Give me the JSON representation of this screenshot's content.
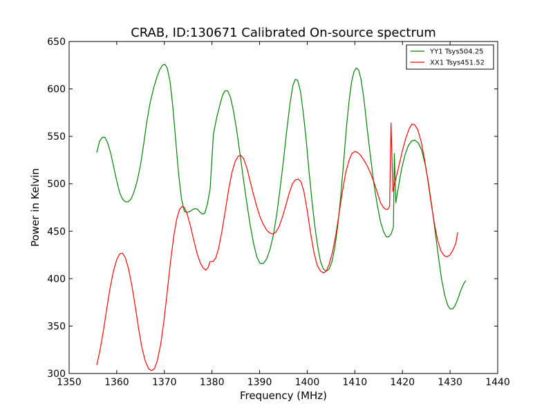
{
  "chart_data": {
    "type": "line",
    "title": "CRAB, ID:130671 Calibrated On-source spectrum",
    "xlabel": "Frequency (MHz)",
    "ylabel": "Power in Kelvin",
    "xlim": [
      1350,
      1440
    ],
    "ylim": [
      300,
      650
    ],
    "xticks": [
      1350,
      1360,
      1370,
      1380,
      1390,
      1400,
      1410,
      1420,
      1430,
      1440
    ],
    "yticks": [
      300,
      350,
      400,
      450,
      500,
      550,
      600,
      650
    ],
    "grid": false,
    "legend_position": "top-right",
    "series": [
      {
        "name": "YY1 Tsys504.25",
        "color": "#008000",
        "points": [
          [
            1355.8,
            533
          ],
          [
            1356.4,
            545
          ],
          [
            1357.0,
            549
          ],
          [
            1357.5,
            549
          ],
          [
            1358.1,
            543
          ],
          [
            1358.7,
            533
          ],
          [
            1359.3,
            519
          ],
          [
            1360.0,
            503
          ],
          [
            1360.6,
            491
          ],
          [
            1361.2,
            484
          ],
          [
            1361.8,
            481
          ],
          [
            1362.4,
            481
          ],
          [
            1363.0,
            484
          ],
          [
            1363.6,
            491
          ],
          [
            1364.3,
            503
          ],
          [
            1365.0,
            520
          ],
          [
            1365.6,
            540
          ],
          [
            1366.3,
            565
          ],
          [
            1367.0,
            585
          ],
          [
            1367.7,
            600
          ],
          [
            1368.4,
            612
          ],
          [
            1369.0,
            620
          ],
          [
            1369.6,
            625
          ],
          [
            1370.1,
            626
          ],
          [
            1370.6,
            622
          ],
          [
            1371.2,
            608
          ],
          [
            1371.8,
            580
          ],
          [
            1372.4,
            545
          ],
          [
            1373.0,
            510
          ],
          [
            1373.6,
            484
          ],
          [
            1374.2,
            471
          ],
          [
            1374.8,
            470
          ],
          [
            1375.4,
            471
          ],
          [
            1376.0,
            473
          ],
          [
            1376.5,
            474
          ],
          [
            1377.0,
            473
          ],
          [
            1377.5,
            470
          ],
          [
            1378.0,
            468
          ],
          [
            1378.5,
            469
          ],
          [
            1379.0,
            478
          ],
          [
            1379.6,
            494
          ],
          [
            1380.3,
            552
          ],
          [
            1380.9,
            568
          ],
          [
            1381.6,
            582
          ],
          [
            1382.2,
            593
          ],
          [
            1382.7,
            598
          ],
          [
            1383.3,
            598
          ],
          [
            1383.9,
            591
          ],
          [
            1384.5,
            577
          ],
          [
            1385.2,
            556
          ],
          [
            1385.9,
            531
          ],
          [
            1386.6,
            505
          ],
          [
            1387.3,
            480
          ],
          [
            1388.0,
            457
          ],
          [
            1388.7,
            438
          ],
          [
            1389.4,
            423
          ],
          [
            1390.1,
            416
          ],
          [
            1390.8,
            416
          ],
          [
            1391.5,
            421
          ],
          [
            1392.2,
            431
          ],
          [
            1392.9,
            446
          ],
          [
            1393.6,
            468
          ],
          [
            1394.3,
            495
          ],
          [
            1395.0,
            524
          ],
          [
            1395.7,
            556
          ],
          [
            1396.4,
            585
          ],
          [
            1397.0,
            604
          ],
          [
            1397.5,
            610
          ],
          [
            1398.0,
            609
          ],
          [
            1398.6,
            597
          ],
          [
            1399.2,
            574
          ],
          [
            1399.8,
            545
          ],
          [
            1400.4,
            512
          ],
          [
            1401.0,
            482
          ],
          [
            1401.6,
            455
          ],
          [
            1402.2,
            434
          ],
          [
            1402.8,
            418
          ],
          [
            1403.4,
            410
          ],
          [
            1404.0,
            408
          ],
          [
            1404.6,
            410
          ],
          [
            1405.2,
            418
          ],
          [
            1405.8,
            433
          ],
          [
            1406.4,
            455
          ],
          [
            1407.0,
            485
          ],
          [
            1407.6,
            520
          ],
          [
            1408.2,
            557
          ],
          [
            1408.8,
            588
          ],
          [
            1409.3,
            607
          ],
          [
            1409.8,
            618
          ],
          [
            1410.3,
            622
          ],
          [
            1410.8,
            620
          ],
          [
            1411.3,
            610
          ],
          [
            1411.9,
            590
          ],
          [
            1412.6,
            558
          ],
          [
            1413.3,
            528
          ],
          [
            1414.0,
            500
          ],
          [
            1414.7,
            478
          ],
          [
            1415.4,
            460
          ],
          [
            1416.0,
            450
          ],
          [
            1416.6,
            444
          ],
          [
            1417.1,
            444
          ],
          [
            1417.6,
            447
          ],
          [
            1418.1,
            454
          ],
          [
            1418.3,
            532
          ],
          [
            1418.6,
            480
          ],
          [
            1419.1,
            495
          ],
          [
            1419.8,
            515
          ],
          [
            1420.5,
            530
          ],
          [
            1421.2,
            540
          ],
          [
            1421.9,
            545
          ],
          [
            1422.6,
            546
          ],
          [
            1423.3,
            543
          ],
          [
            1424.0,
            536
          ],
          [
            1424.7,
            522
          ],
          [
            1425.4,
            503
          ],
          [
            1426.1,
            479
          ],
          [
            1426.8,
            452
          ],
          [
            1427.5,
            425
          ],
          [
            1428.2,
            400
          ],
          [
            1428.9,
            382
          ],
          [
            1429.5,
            372
          ],
          [
            1430.0,
            368
          ],
          [
            1430.5,
            368
          ],
          [
            1431.0,
            371
          ],
          [
            1431.6,
            378
          ],
          [
            1432.2,
            387
          ],
          [
            1432.8,
            394
          ],
          [
            1433.3,
            398
          ]
        ]
      },
      {
        "name": "XX1 Tsys451.52",
        "color": "#ff0000",
        "points": [
          [
            1355.8,
            309
          ],
          [
            1356.5,
            325
          ],
          [
            1357.2,
            345
          ],
          [
            1357.9,
            368
          ],
          [
            1358.6,
            390
          ],
          [
            1359.3,
            408
          ],
          [
            1360.0,
            420
          ],
          [
            1360.6,
            426
          ],
          [
            1361.2,
            427
          ],
          [
            1361.8,
            422
          ],
          [
            1362.5,
            410
          ],
          [
            1363.2,
            392
          ],
          [
            1363.9,
            370
          ],
          [
            1364.6,
            347
          ],
          [
            1365.3,
            327
          ],
          [
            1366.0,
            313
          ],
          [
            1366.7,
            305
          ],
          [
            1367.3,
            303
          ],
          [
            1367.9,
            305
          ],
          [
            1368.5,
            313
          ],
          [
            1369.2,
            330
          ],
          [
            1369.9,
            355
          ],
          [
            1370.6,
            386
          ],
          [
            1371.3,
            418
          ],
          [
            1372.0,
            446
          ],
          [
            1372.6,
            463
          ],
          [
            1373.2,
            473
          ],
          [
            1373.7,
            476
          ],
          [
            1374.2,
            475
          ],
          [
            1374.8,
            468
          ],
          [
            1375.5,
            455
          ],
          [
            1376.2,
            440
          ],
          [
            1376.9,
            426
          ],
          [
            1377.6,
            416
          ],
          [
            1378.2,
            411
          ],
          [
            1378.7,
            409
          ],
          [
            1379.2,
            412
          ],
          [
            1379.6,
            418
          ],
          [
            1380.2,
            418
          ],
          [
            1380.8,
            422
          ],
          [
            1381.4,
            432
          ],
          [
            1382.1,
            450
          ],
          [
            1382.8,
            472
          ],
          [
            1383.5,
            494
          ],
          [
            1384.2,
            512
          ],
          [
            1384.9,
            524
          ],
          [
            1385.5,
            529
          ],
          [
            1386.0,
            530
          ],
          [
            1386.6,
            527
          ],
          [
            1387.3,
            517
          ],
          [
            1388.0,
            503
          ],
          [
            1388.7,
            489
          ],
          [
            1389.4,
            476
          ],
          [
            1390.1,
            465
          ],
          [
            1390.8,
            457
          ],
          [
            1391.5,
            451
          ],
          [
            1392.2,
            448
          ],
          [
            1392.8,
            447
          ],
          [
            1393.4,
            449
          ],
          [
            1394.1,
            455
          ],
          [
            1394.8,
            465
          ],
          [
            1395.5,
            477
          ],
          [
            1396.2,
            490
          ],
          [
            1396.9,
            500
          ],
          [
            1397.5,
            504
          ],
          [
            1398.1,
            505
          ],
          [
            1398.7,
            502
          ],
          [
            1399.3,
            492
          ],
          [
            1400.0,
            472
          ],
          [
            1400.7,
            448
          ],
          [
            1401.4,
            428
          ],
          [
            1402.1,
            414
          ],
          [
            1402.8,
            408
          ],
          [
            1403.4,
            406
          ],
          [
            1404.0,
            408
          ],
          [
            1404.6,
            415
          ],
          [
            1405.3,
            428
          ],
          [
            1406.0,
            446
          ],
          [
            1406.7,
            469
          ],
          [
            1407.4,
            492
          ],
          [
            1408.1,
            512
          ],
          [
            1408.8,
            525
          ],
          [
            1409.4,
            532
          ],
          [
            1410.0,
            534
          ],
          [
            1410.6,
            533
          ],
          [
            1411.2,
            530
          ],
          [
            1411.9,
            525
          ],
          [
            1412.6,
            519
          ],
          [
            1413.3,
            511
          ],
          [
            1414.0,
            502
          ],
          [
            1414.7,
            491
          ],
          [
            1415.4,
            480
          ],
          [
            1416.0,
            475
          ],
          [
            1416.5,
            473
          ],
          [
            1416.9,
            473
          ],
          [
            1417.3,
            476
          ],
          [
            1417.6,
            564
          ],
          [
            1418.0,
            492
          ],
          [
            1418.6,
            505
          ],
          [
            1419.3,
            520
          ],
          [
            1420.0,
            535
          ],
          [
            1420.7,
            548
          ],
          [
            1421.4,
            558
          ],
          [
            1422.0,
            563
          ],
          [
            1422.6,
            562
          ],
          [
            1423.2,
            557
          ],
          [
            1423.9,
            545
          ],
          [
            1424.6,
            527
          ],
          [
            1425.3,
            505
          ],
          [
            1426.0,
            480
          ],
          [
            1426.7,
            458
          ],
          [
            1427.4,
            440
          ],
          [
            1428.1,
            429
          ],
          [
            1428.8,
            424
          ],
          [
            1429.4,
            423
          ],
          [
            1430.0,
            425
          ],
          [
            1430.6,
            430
          ],
          [
            1431.2,
            437
          ],
          [
            1431.6,
            449
          ]
        ]
      }
    ]
  }
}
